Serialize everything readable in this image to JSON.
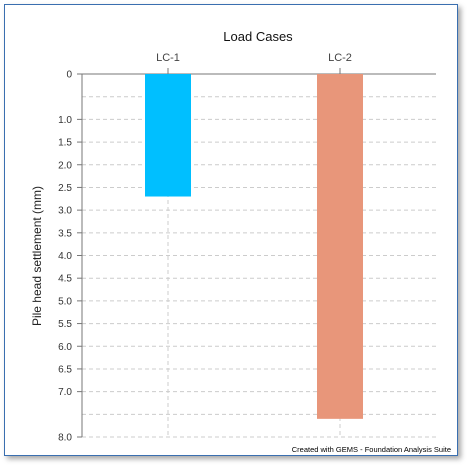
{
  "chart_data": {
    "type": "bar",
    "title": "Load Cases",
    "xlabel": "",
    "ylabel": "Pile head settlement (mm)",
    "categories": [
      "LC-1",
      "LC-2"
    ],
    "values": [
      2.7,
      7.6
    ],
    "ylim": [
      0,
      8.0
    ],
    "y_inverted": true,
    "y_tick_labels": [
      "0",
      "1.0",
      "1.5",
      "2.0",
      "2.5",
      "3.0",
      "3.5",
      "4.0",
      "4.5",
      "5.0",
      "5.5",
      "6.0",
      "6.5",
      "7.0",
      "8.0"
    ],
    "y_tick_values": [
      0,
      1.0,
      1.5,
      2.0,
      2.5,
      3.0,
      3.5,
      4.0,
      4.5,
      5.0,
      5.5,
      6.0,
      6.5,
      7.0,
      8.0
    ],
    "y_gridlines": [
      0,
      0.5,
      1.0,
      1.5,
      2.0,
      2.5,
      3.0,
      3.5,
      4.0,
      4.5,
      5.0,
      5.5,
      6.0,
      6.5,
      7.0,
      7.5,
      8.0
    ],
    "x_axis_position": "top",
    "grid": true,
    "colors": [
      "#00bfff",
      "#e8967a"
    ],
    "credit": "Created with GEMS - Foundation Analysis Suite"
  }
}
